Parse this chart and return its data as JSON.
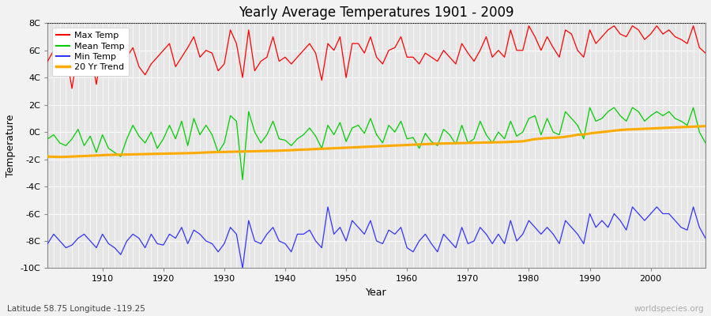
{
  "title": "Yearly Average Temperatures 1901 - 2009",
  "xlabel": "Year",
  "ylabel": "Temperature",
  "subtitle_left": "Latitude 58.75 Longitude -119.25",
  "subtitle_right": "worldspecies.org",
  "ylim": [
    -10,
    8
  ],
  "yticks": [
    -10,
    -8,
    -6,
    -4,
    -2,
    0,
    2,
    4,
    6,
    8
  ],
  "ytick_labels": [
    "-10C",
    "-8C",
    "-6C",
    "-4C",
    "-2C",
    "0C",
    "2C",
    "4C",
    "6C",
    "8C"
  ],
  "years": [
    1901,
    1902,
    1903,
    1904,
    1905,
    1906,
    1907,
    1908,
    1909,
    1910,
    1911,
    1912,
    1913,
    1914,
    1915,
    1916,
    1917,
    1918,
    1919,
    1920,
    1921,
    1922,
    1923,
    1924,
    1925,
    1926,
    1927,
    1928,
    1929,
    1930,
    1931,
    1932,
    1933,
    1934,
    1935,
    1936,
    1937,
    1938,
    1939,
    1940,
    1941,
    1942,
    1943,
    1944,
    1945,
    1946,
    1947,
    1948,
    1949,
    1950,
    1951,
    1952,
    1953,
    1954,
    1955,
    1956,
    1957,
    1958,
    1959,
    1960,
    1961,
    1962,
    1963,
    1964,
    1965,
    1966,
    1967,
    1968,
    1969,
    1970,
    1971,
    1972,
    1973,
    1974,
    1975,
    1976,
    1977,
    1978,
    1979,
    1980,
    1981,
    1982,
    1983,
    1984,
    1985,
    1986,
    1987,
    1988,
    1989,
    1990,
    1991,
    1992,
    1993,
    1994,
    1995,
    1996,
    1997,
    1998,
    1999,
    2000,
    2001,
    2002,
    2003,
    2004,
    2005,
    2006,
    2007,
    2008,
    2009
  ],
  "max_temp": [
    5.2,
    6.0,
    5.5,
    5.8,
    3.2,
    6.2,
    5.5,
    6.0,
    3.5,
    6.5,
    4.5,
    4.8,
    4.2,
    5.5,
    6.2,
    4.8,
    4.2,
    5.0,
    5.5,
    6.0,
    6.5,
    4.8,
    5.5,
    6.2,
    7.0,
    5.5,
    6.0,
    5.8,
    4.5,
    5.0,
    7.5,
    6.5,
    4.0,
    7.5,
    4.5,
    5.2,
    5.5,
    7.0,
    5.2,
    5.5,
    5.0,
    5.5,
    6.0,
    6.5,
    5.8,
    3.8,
    6.5,
    6.0,
    7.0,
    4.0,
    6.5,
    6.5,
    5.8,
    7.0,
    5.5,
    5.0,
    6.0,
    6.2,
    7.0,
    5.5,
    5.5,
    5.0,
    5.8,
    5.5,
    5.2,
    6.0,
    5.5,
    5.0,
    6.5,
    5.8,
    5.2,
    6.0,
    7.0,
    5.5,
    6.0,
    5.5,
    7.5,
    6.0,
    6.0,
    7.8,
    7.0,
    6.0,
    7.0,
    6.2,
    5.5,
    7.5,
    7.2,
    6.0,
    5.5,
    7.5,
    6.5,
    7.0,
    7.5,
    7.8,
    7.2,
    7.0,
    7.8,
    7.5,
    6.8,
    7.2,
    7.8,
    7.2,
    7.5,
    7.0,
    6.8,
    6.5,
    7.8,
    6.2,
    5.8
  ],
  "mean_temp": [
    -0.5,
    -0.2,
    -0.8,
    -1.0,
    -0.5,
    0.2,
    -1.0,
    -0.3,
    -1.5,
    -0.2,
    -1.2,
    -1.5,
    -1.8,
    -0.5,
    0.5,
    -0.3,
    -0.8,
    0.0,
    -1.2,
    -0.5,
    0.5,
    -0.5,
    0.8,
    -1.0,
    1.0,
    -0.2,
    0.5,
    -0.2,
    -1.5,
    -0.8,
    1.2,
    0.8,
    -3.5,
    1.5,
    0.0,
    -0.8,
    -0.2,
    0.8,
    -0.5,
    -0.6,
    -1.0,
    -0.5,
    -0.2,
    0.3,
    -0.3,
    -1.2,
    0.5,
    -0.2,
    0.7,
    -0.7,
    0.3,
    0.5,
    -0.1,
    1.0,
    -0.2,
    -0.8,
    0.5,
    0.0,
    0.8,
    -0.5,
    -0.4,
    -1.2,
    -0.1,
    -0.7,
    -1.0,
    0.2,
    -0.2,
    -0.9,
    0.5,
    -0.8,
    -0.5,
    0.8,
    -0.2,
    -0.8,
    0.0,
    -0.5,
    0.8,
    -0.3,
    0.0,
    1.0,
    1.2,
    -0.2,
    1.0,
    0.0,
    -0.2,
    1.5,
    1.0,
    0.5,
    -0.5,
    1.8,
    0.8,
    1.0,
    1.5,
    1.8,
    1.2,
    0.8,
    1.8,
    1.5,
    0.8,
    1.2,
    1.5,
    1.2,
    1.5,
    1.0,
    0.8,
    0.5,
    1.8,
    0.0,
    -0.8
  ],
  "min_temp": [
    -8.2,
    -7.5,
    -8.0,
    -8.5,
    -8.3,
    -7.8,
    -7.5,
    -8.0,
    -8.5,
    -7.5,
    -8.2,
    -8.5,
    -9.0,
    -8.0,
    -7.5,
    -7.8,
    -8.5,
    -7.5,
    -8.2,
    -8.3,
    -7.5,
    -7.8,
    -7.0,
    -8.2,
    -7.2,
    -7.5,
    -8.0,
    -8.2,
    -8.8,
    -8.2,
    -7.0,
    -7.5,
    -10.0,
    -6.5,
    -8.0,
    -8.2,
    -7.5,
    -7.0,
    -8.0,
    -8.2,
    -8.8,
    -7.5,
    -7.5,
    -7.2,
    -8.0,
    -8.5,
    -5.5,
    -7.5,
    -7.0,
    -8.0,
    -6.5,
    -7.0,
    -7.5,
    -6.5,
    -8.0,
    -8.2,
    -7.2,
    -7.5,
    -7.0,
    -8.5,
    -8.8,
    -8.0,
    -7.5,
    -8.2,
    -8.8,
    -7.5,
    -8.0,
    -8.5,
    -7.0,
    -8.2,
    -8.0,
    -7.0,
    -7.5,
    -8.2,
    -7.5,
    -8.2,
    -6.5,
    -8.0,
    -7.5,
    -6.5,
    -7.0,
    -7.5,
    -7.0,
    -7.5,
    -8.2,
    -6.5,
    -7.0,
    -7.5,
    -8.2,
    -6.0,
    -7.0,
    -6.5,
    -7.0,
    -6.0,
    -6.5,
    -7.2,
    -5.5,
    -6.0,
    -6.5,
    -6.0,
    -5.5,
    -6.0,
    -6.0,
    -6.5,
    -7.0,
    -7.2,
    -5.5,
    -7.0,
    -7.8
  ],
  "trend_20yr": [
    -1.8,
    -1.82,
    -1.83,
    -1.82,
    -1.8,
    -1.78,
    -1.76,
    -1.74,
    -1.72,
    -1.7,
    -1.68,
    -1.67,
    -1.66,
    -1.65,
    -1.64,
    -1.63,
    -1.62,
    -1.61,
    -1.6,
    -1.59,
    -1.58,
    -1.57,
    -1.56,
    -1.55,
    -1.54,
    -1.52,
    -1.5,
    -1.48,
    -1.47,
    -1.46,
    -1.45,
    -1.44,
    -1.43,
    -1.42,
    -1.41,
    -1.4,
    -1.39,
    -1.38,
    -1.37,
    -1.35,
    -1.33,
    -1.31,
    -1.29,
    -1.27,
    -1.25,
    -1.23,
    -1.21,
    -1.19,
    -1.17,
    -1.15,
    -1.13,
    -1.11,
    -1.09,
    -1.07,
    -1.05,
    -1.03,
    -1.01,
    -0.99,
    -0.97,
    -0.95,
    -0.93,
    -0.91,
    -0.89,
    -0.87,
    -0.85,
    -0.84,
    -0.83,
    -0.82,
    -0.81,
    -0.8,
    -0.79,
    -0.78,
    -0.77,
    -0.76,
    -0.75,
    -0.74,
    -0.72,
    -0.7,
    -0.68,
    -0.6,
    -0.52,
    -0.48,
    -0.44,
    -0.42,
    -0.4,
    -0.35,
    -0.28,
    -0.2,
    -0.18,
    -0.1,
    -0.05,
    0.0,
    0.05,
    0.1,
    0.15,
    0.18,
    0.2,
    0.22,
    0.24,
    0.26,
    0.28,
    0.3,
    0.32,
    0.34,
    0.36,
    0.38,
    0.4,
    0.42,
    0.44
  ],
  "max_color": "#ff0000",
  "mean_color": "#00cc00",
  "min_color": "#3333ff",
  "trend_color": "#ffaa00",
  "bg_color": "#f2f2f2",
  "plot_bg": "#e6e6e6",
  "grid_color": "#ffffff",
  "dotted_line_y": 8,
  "xticks": [
    1910,
    1920,
    1930,
    1940,
    1950,
    1960,
    1970,
    1980,
    1990,
    2000
  ],
  "xmin": 1901,
  "xmax": 2009,
  "legend_items": [
    "Max Temp",
    "Mean Temp",
    "Min Temp",
    "20 Yr Trend"
  ]
}
